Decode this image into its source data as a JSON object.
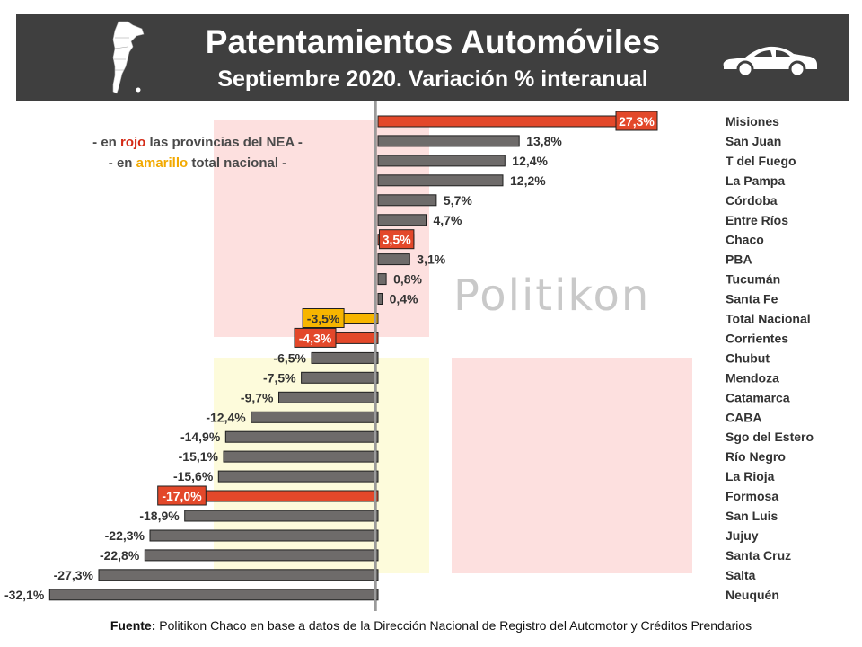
{
  "header": {
    "title": "Patentamientos Automóviles",
    "subtitle": "Septiembre 2020. Variación % interanual"
  },
  "legend": {
    "line1_prefix": "- en ",
    "line1_highlight": "rojo",
    "line1_suffix": " las provincias del NEA -",
    "line2_prefix": "- en ",
    "line2_highlight": "amarillo",
    "line2_suffix": " total nacional -"
  },
  "watermark": "Politikon",
  "source": {
    "label": "Fuente:",
    "text": " Politikon Chaco en base a datos de la Dirección Nacional de Registro del Automotor y Créditos Prendarios"
  },
  "icons": [
    "argentina-map-icon",
    "car-icon"
  ],
  "colors": {
    "header_bg": "#3f3f3f",
    "bar_default": "#6e6b6a",
    "bar_nea": "#e3482a",
    "bar_national": "#f7b500",
    "bg_pink": "#fde0df",
    "bg_yellow": "#fdfbdb"
  },
  "chart_data": {
    "type": "bar",
    "orientation": "horizontal",
    "categories": [
      "Misiones",
      "San Juan",
      "T del Fuego",
      "La Pampa",
      "Córdoba",
      "Entre Ríos",
      "Chaco",
      "PBA",
      "Tucumán",
      "Santa Fe",
      "Total Nacional",
      "Corrientes",
      "Chubut",
      "Mendoza",
      "Catamarca",
      "CABA",
      "Sgo del Estero",
      "Río Negro",
      "La Rioja",
      "Formosa",
      "San Luis",
      "Jujuy",
      "Santa Cruz",
      "Salta",
      "Neuquén"
    ],
    "values": [
      27.3,
      13.8,
      12.4,
      12.2,
      5.7,
      4.7,
      3.5,
      3.1,
      0.8,
      0.4,
      -3.5,
      -4.3,
      -6.5,
      -7.5,
      -9.7,
      -12.4,
      -14.9,
      -15.1,
      -15.6,
      -17.0,
      -18.9,
      -22.3,
      -22.8,
      -27.3,
      -32.1
    ],
    "labels": [
      "27,3%",
      "13,8%",
      "12,4%",
      "12,2%",
      "5,7%",
      "4,7%",
      "3,5%",
      "3,1%",
      "0,8%",
      "0,4%",
      "-3,5%",
      "-4,3%",
      "-6,5%",
      "-7,5%",
      "-9,7%",
      "-12,4%",
      "-14,9%",
      "-15,1%",
      "-15,6%",
      "-17,0%",
      "-18,9%",
      "-22,3%",
      "-22,8%",
      "-27,3%",
      "-32,1%"
    ],
    "groups": [
      "nea",
      "default",
      "default",
      "default",
      "default",
      "default",
      "nea",
      "default",
      "default",
      "default",
      "national",
      "nea",
      "default",
      "default",
      "default",
      "default",
      "default",
      "default",
      "default",
      "nea",
      "default",
      "default",
      "default",
      "default",
      "default"
    ],
    "xlim": [
      -32.1,
      27.3
    ],
    "grid": false,
    "legend": "top-left"
  }
}
